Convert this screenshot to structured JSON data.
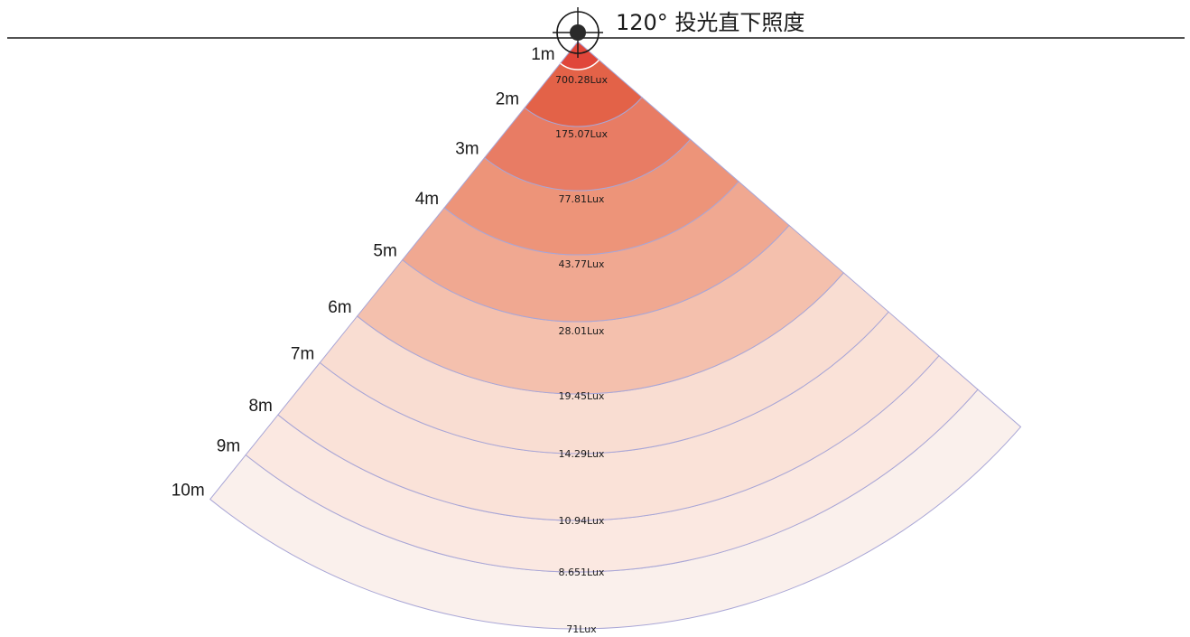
{
  "title": "120° 投光直下照度",
  "beam_angle_deg": 120,
  "rings": [
    {
      "distance": "1m",
      "lux": "700.28Lux",
      "color": "#e0463a"
    },
    {
      "distance": "2m",
      "lux": "175.07Lux",
      "color": "#e36248"
    },
    {
      "distance": "3m",
      "lux": "77.81Lux",
      "color": "#e87c64"
    },
    {
      "distance": "4m",
      "lux": "43.77Lux",
      "color": "#ed9479"
    },
    {
      "distance": "5m",
      "lux": "28.01Lux",
      "color": "#f0a891"
    },
    {
      "distance": "6m",
      "lux": "19.45Lux",
      "color": "#f4c0ad"
    },
    {
      "distance": "7m",
      "lux": "14.29Lux",
      "color": "#f9ddd2"
    },
    {
      "distance": "8m",
      "lux": "10.94Lux",
      "color": "#fae2d8"
    },
    {
      "distance": "9m",
      "lux": "8.651Lux",
      "color": "#fbe8e1"
    },
    {
      "distance": "10m",
      "lux": "71Lux",
      "color": "#faf0ec"
    }
  ],
  "colors": {
    "ring_stroke": "#a9a6d6",
    "line": "#1a1a1a"
  },
  "icons": [
    "light-source-crosshair-icon"
  ]
}
